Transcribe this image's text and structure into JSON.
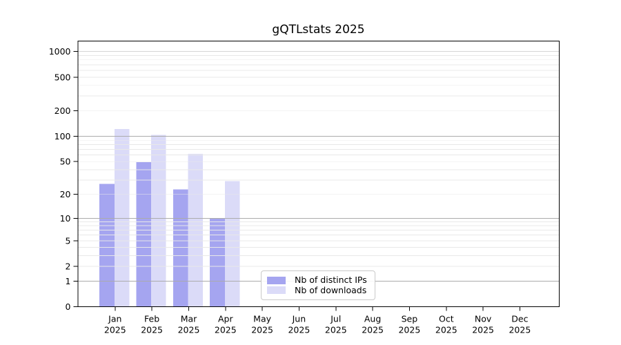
{
  "chart_data": {
    "type": "bar",
    "title": "gQTLstats 2025",
    "categories": [
      "Jan",
      "Feb",
      "Mar",
      "Apr",
      "May",
      "Jun",
      "Jul",
      "Aug",
      "Sep",
      "Oct",
      "Nov",
      "Dec"
    ],
    "x_tick_year": "2025",
    "y_ticks": [
      1000,
      500,
      200,
      100,
      50,
      20,
      10,
      5,
      2,
      1,
      0
    ],
    "y_scale": "log10(1+x)",
    "ylim": [
      0,
      1000
    ],
    "grid": "horizontal, log minor gridlines, drawn above bars",
    "legend_position": "bottom-center-inside",
    "series": [
      {
        "name": "Nb of distinct IPs",
        "color": "#a5a5f0",
        "values": [
          27,
          49,
          23,
          10,
          0,
          0,
          0,
          0,
          0,
          0,
          0,
          0
        ]
      },
      {
        "name": "Nb of downloads",
        "color": "#dbdbf8",
        "values": [
          122,
          104,
          62,
          29,
          0,
          0,
          0,
          0,
          0,
          0,
          0,
          0
        ]
      }
    ]
  }
}
